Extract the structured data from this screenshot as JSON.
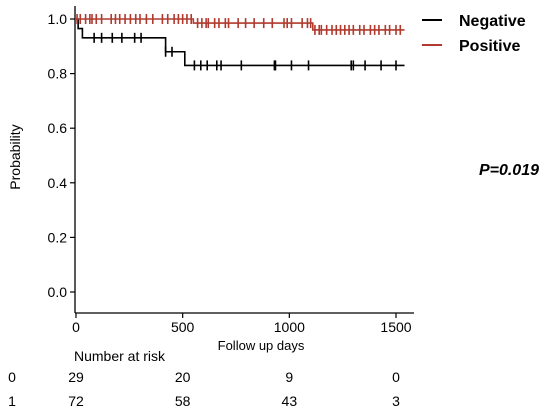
{
  "chart_data": {
    "type": "line",
    "xlabel": "Follow up days",
    "ylabel": "Probability",
    "xlim": [
      0,
      1550
    ],
    "ylim": [
      -0.05,
      1.05
    ],
    "x_ticks": [
      0,
      500,
      1000,
      1500
    ],
    "y_ticks": [
      "0.0",
      "0.2",
      "0.4",
      "0.6",
      "0.8",
      "1.0"
    ],
    "grid": false,
    "legend_position": "top-right",
    "annotation": "P=0.019",
    "series": [
      {
        "name": "Negative",
        "color": "#000000",
        "steps": [
          [
            0,
            1.0
          ],
          [
            10,
            0.965
          ],
          [
            30,
            0.931
          ],
          [
            420,
            0.88
          ],
          [
            510,
            0.83
          ],
          [
            1540,
            0.83
          ]
        ],
        "censor_x": [
          85,
          120,
          170,
          215,
          275,
          305,
          420,
          450,
          555,
          585,
          615,
          660,
          680,
          775,
          930,
          935,
          1010,
          1090,
          1290,
          1300,
          1355,
          1430,
          1500
        ]
      },
      {
        "name": "Positive",
        "color": "#b03a2e",
        "steps": [
          [
            0,
            1.0
          ],
          [
            550,
            0.985
          ],
          [
            1110,
            0.96
          ],
          [
            1540,
            0.96
          ]
        ],
        "censor_x": [
          5,
          20,
          45,
          65,
          75,
          95,
          120,
          165,
          185,
          205,
          230,
          255,
          280,
          300,
          330,
          360,
          405,
          430,
          460,
          480,
          500,
          520,
          540,
          570,
          590,
          610,
          620,
          650,
          670,
          700,
          715,
          760,
          795,
          835,
          880,
          920,
          975,
          990,
          1010,
          1060,
          1085,
          1100,
          1120,
          1140,
          1150,
          1175,
          1200,
          1220,
          1240,
          1260,
          1280,
          1300,
          1330,
          1350,
          1380,
          1400,
          1420,
          1450,
          1470,
          1500,
          1520
        ]
      }
    ],
    "risk_table": {
      "title": "Number at risk",
      "rows": [
        {
          "label": "0",
          "values": [
            "29",
            "20",
            "9",
            "0"
          ]
        },
        {
          "label": "1",
          "values": [
            "72",
            "58",
            "43",
            "3"
          ]
        }
      ]
    }
  }
}
